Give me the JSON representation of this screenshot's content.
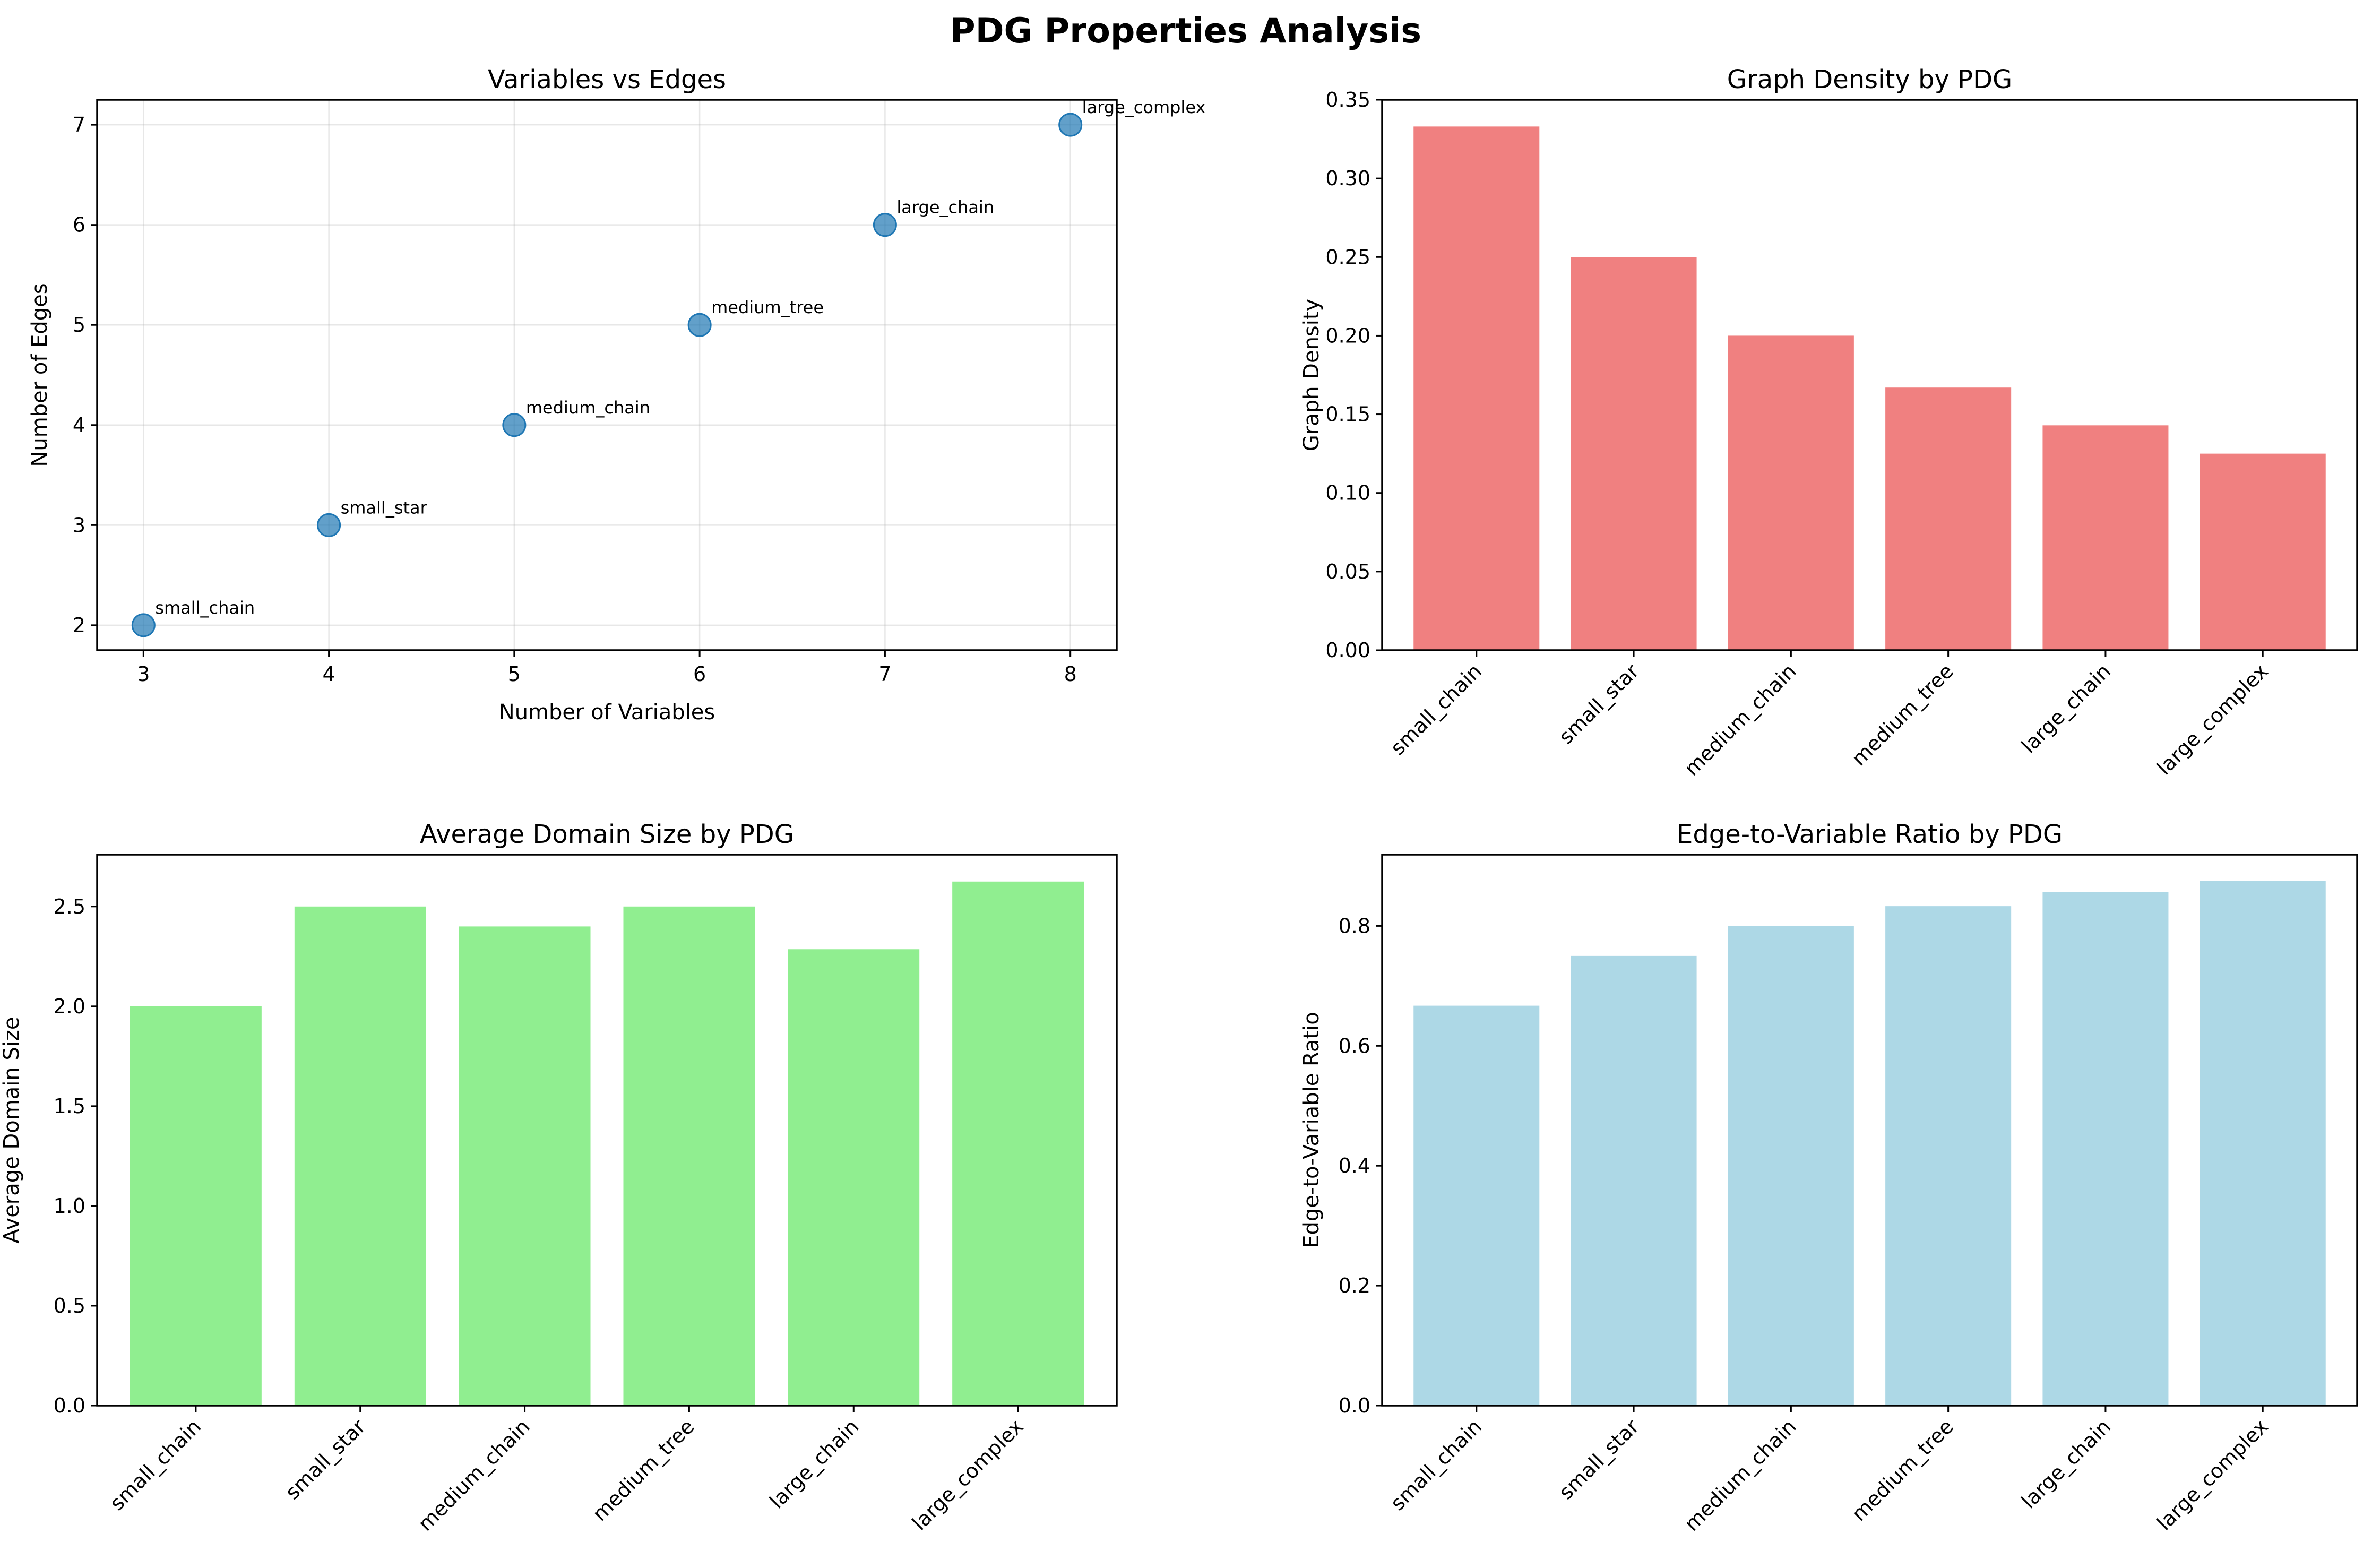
{
  "figure_title": "PDG Properties Analysis",
  "chart_data": [
    {
      "type": "scatter",
      "title": "Variables vs Edges",
      "xlabel": "Number of Variables",
      "ylabel": "Number of Edges",
      "x": [
        3,
        4,
        5,
        6,
        7,
        8
      ],
      "y": [
        2,
        3,
        4,
        5,
        6,
        7
      ],
      "point_labels": [
        "small_chain",
        "small_star",
        "medium_chain",
        "medium_tree",
        "large_chain",
        "large_complex"
      ],
      "xlim": [
        2.75,
        8.25
      ],
      "ylim": [
        1.75,
        7.25
      ],
      "xticks": [
        3,
        4,
        5,
        6,
        7,
        8
      ],
      "yticks": [
        2,
        3,
        4,
        5,
        6,
        7
      ],
      "grid": true,
      "color": "#1f77b4"
    },
    {
      "type": "bar",
      "title": "Graph Density by PDG",
      "xlabel": "",
      "ylabel": "Graph Density",
      "categories": [
        "small_chain",
        "small_star",
        "medium_chain",
        "medium_tree",
        "large_chain",
        "large_complex"
      ],
      "values": [
        0.333,
        0.25,
        0.2,
        0.167,
        0.143,
        0.125
      ],
      "ylim": [
        0,
        0.35
      ],
      "yticks": [
        0.0,
        0.05,
        0.1,
        0.15,
        0.2,
        0.25,
        0.3,
        0.35
      ],
      "ytick_labels": [
        "0.00",
        "0.05",
        "0.10",
        "0.15",
        "0.20",
        "0.25",
        "0.30",
        "0.35"
      ],
      "grid": false,
      "color": "#f08080"
    },
    {
      "type": "bar",
      "title": "Average Domain Size by PDG",
      "xlabel": "",
      "ylabel": "Average Domain Size",
      "categories": [
        "small_chain",
        "small_star",
        "medium_chain",
        "medium_tree",
        "large_chain",
        "large_complex"
      ],
      "values": [
        2.0,
        2.5,
        2.4,
        2.5,
        2.286,
        2.625
      ],
      "ylim": [
        0,
        2.76
      ],
      "yticks": [
        0.0,
        0.5,
        1.0,
        1.5,
        2.0,
        2.5
      ],
      "ytick_labels": [
        "0.0",
        "0.5",
        "1.0",
        "1.5",
        "2.0",
        "2.5"
      ],
      "grid": false,
      "color": "#90ee90"
    },
    {
      "type": "bar",
      "title": "Edge-to-Variable Ratio by PDG",
      "xlabel": "",
      "ylabel": "Edge-to-Variable Ratio",
      "categories": [
        "small_chain",
        "small_star",
        "medium_chain",
        "medium_tree",
        "large_chain",
        "large_complex"
      ],
      "values": [
        0.667,
        0.75,
        0.8,
        0.833,
        0.857,
        0.875
      ],
      "ylim": [
        0,
        0.919
      ],
      "yticks": [
        0.0,
        0.2,
        0.4,
        0.6,
        0.8
      ],
      "ytick_labels": [
        "0.0",
        "0.2",
        "0.4",
        "0.6",
        "0.8"
      ],
      "grid": false,
      "color": "#add8e6"
    }
  ]
}
